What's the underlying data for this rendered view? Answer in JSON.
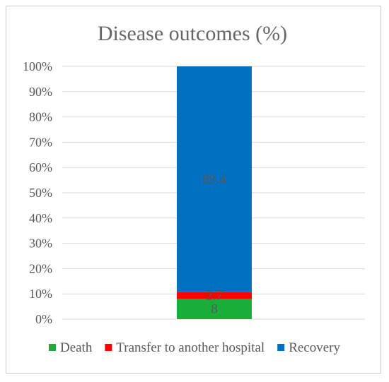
{
  "chart_data": {
    "type": "bar",
    "stacked": true,
    "percent_axis": true,
    "title": "Disease outcomes (%)",
    "categories": [
      ""
    ],
    "series": [
      {
        "name": "Death",
        "values": [
          8
        ],
        "color": "#1aad3a",
        "label": "8"
      },
      {
        "name": "Transfer to another hospital",
        "values": [
          2.7
        ],
        "color": "#ff0000",
        "label": "2.7"
      },
      {
        "name": "Recovery",
        "values": [
          89.4
        ],
        "color": "#0070c0",
        "label": "89.4"
      }
    ],
    "ylim": [
      0,
      100
    ],
    "yticks": [
      "0%",
      "10%",
      "20%",
      "30%",
      "40%",
      "50%",
      "60%",
      "70%",
      "80%",
      "90%",
      "100%"
    ],
    "grid": true,
    "legend_position": "bottom"
  }
}
